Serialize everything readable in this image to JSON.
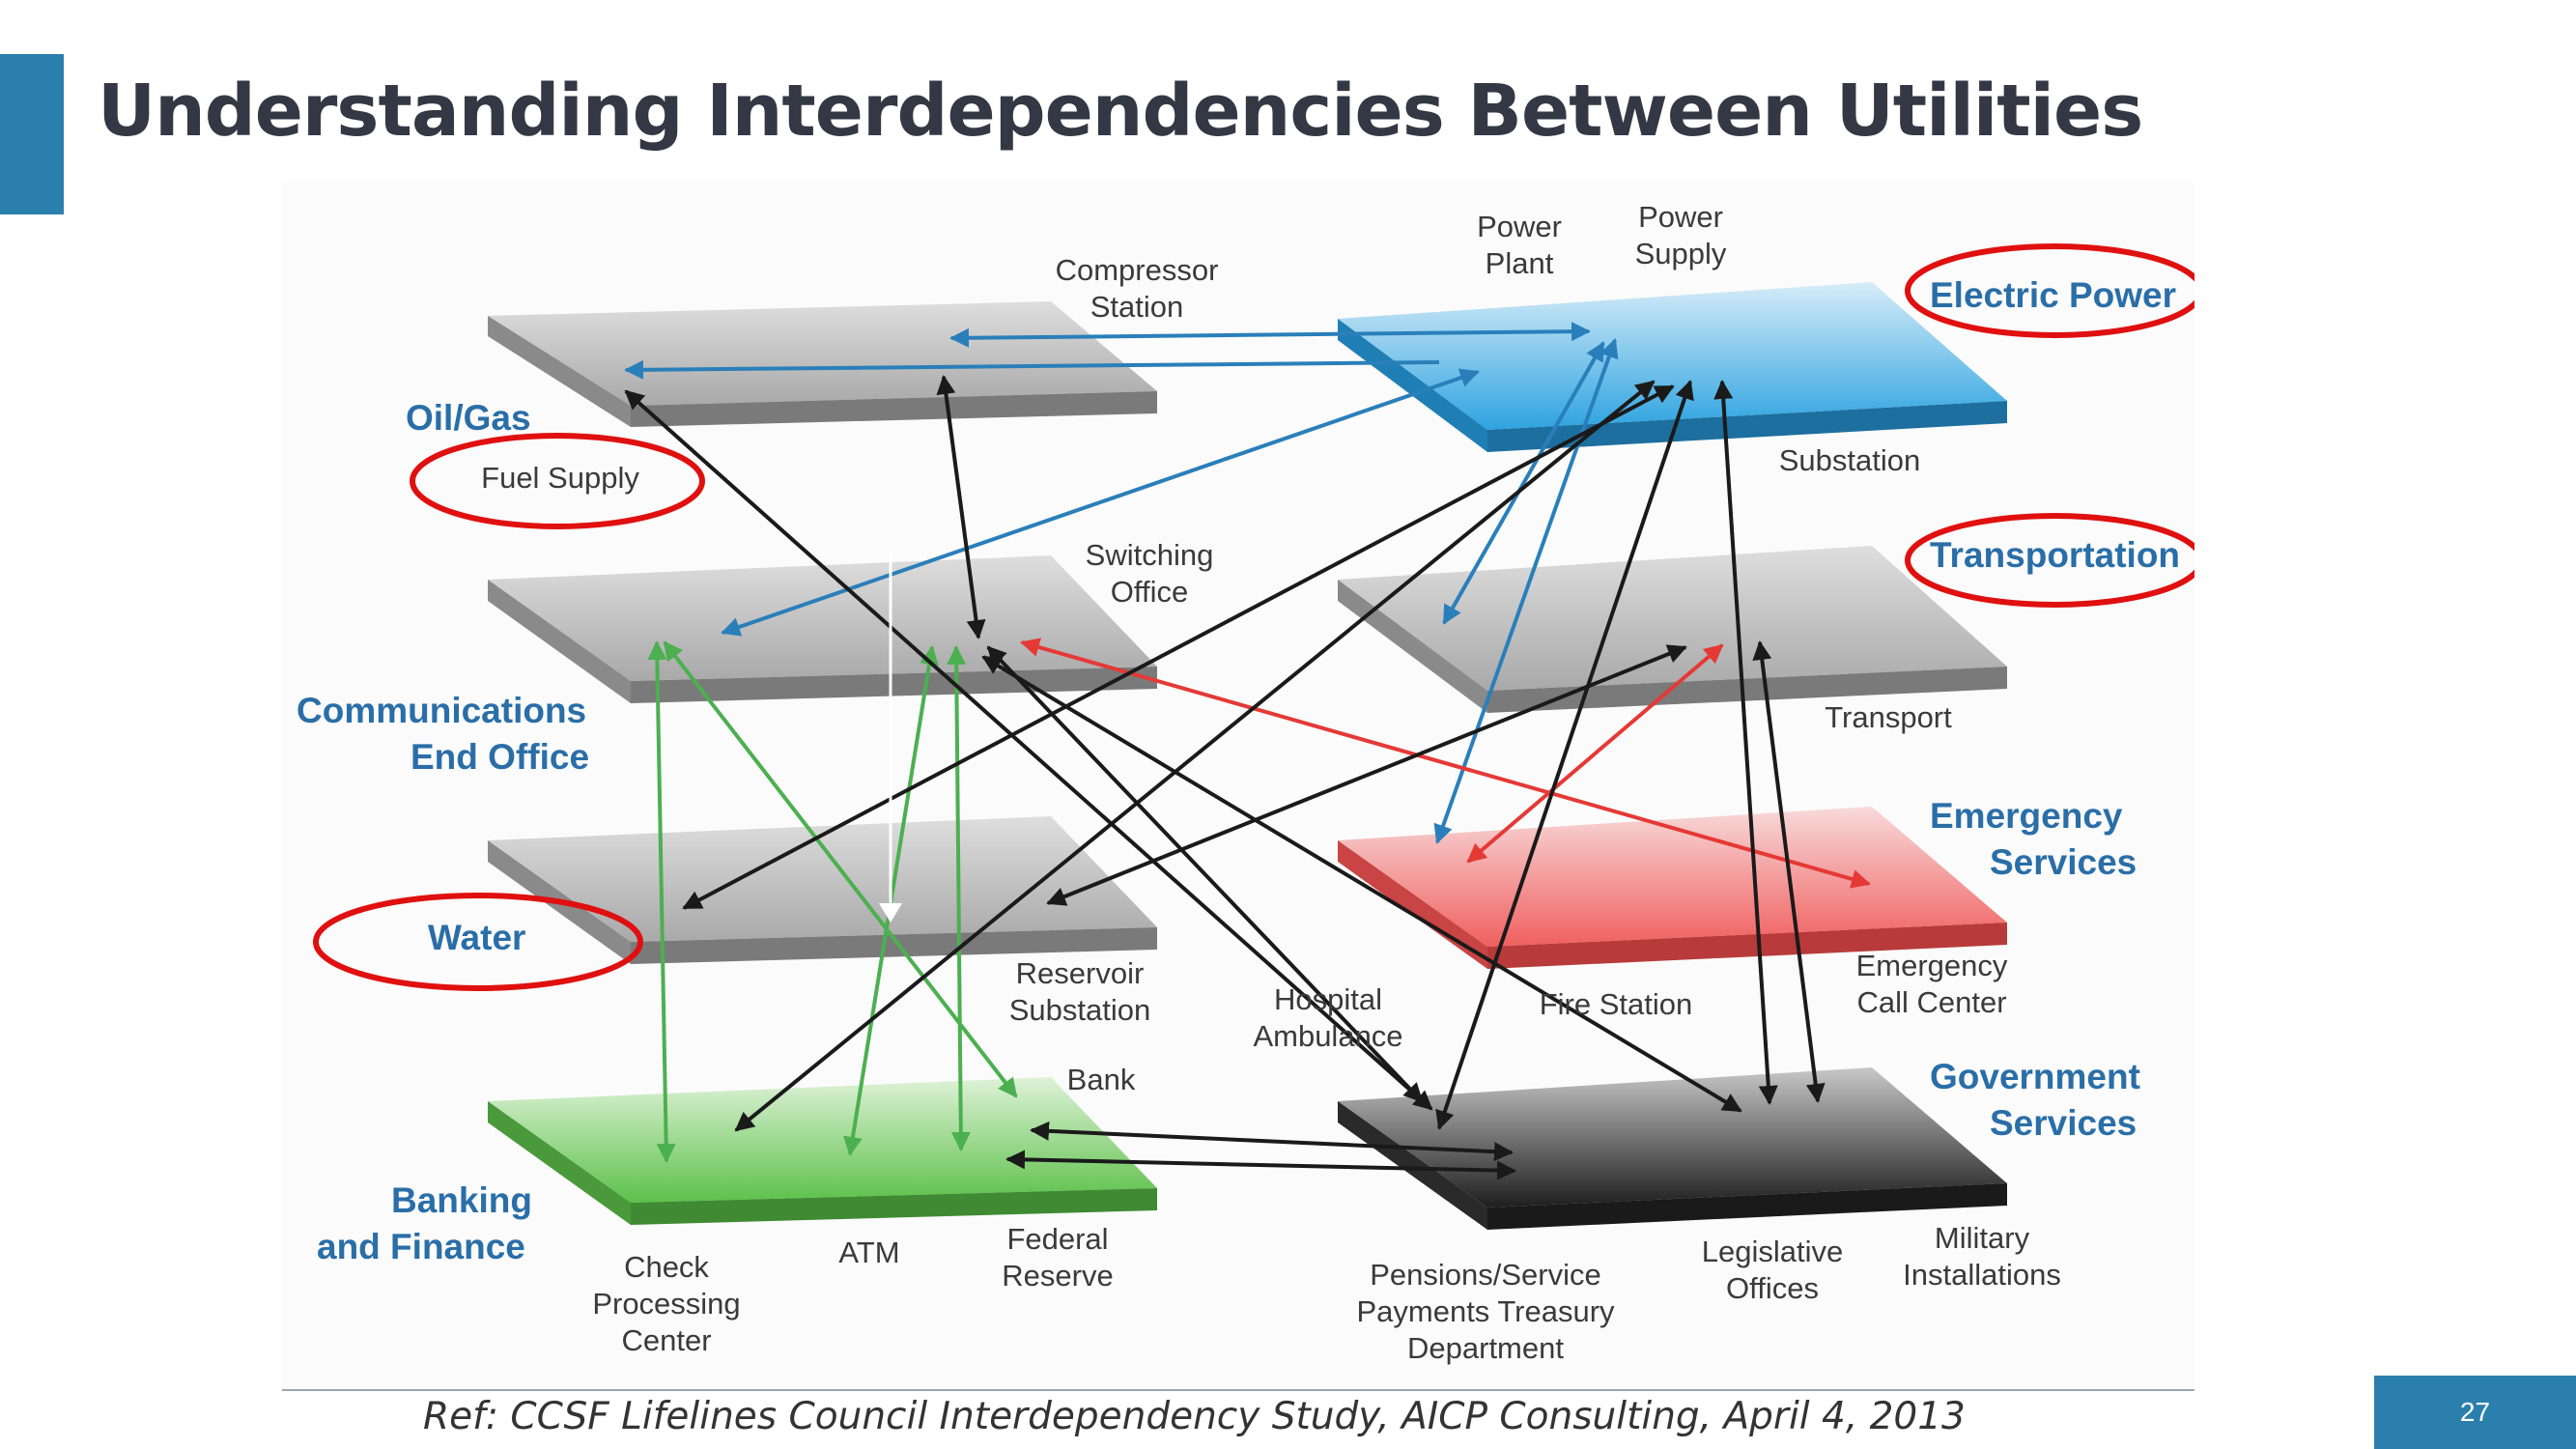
{
  "slide": {
    "title": "Understanding Interdependencies Between Utilities",
    "reference": "Ref: CCSF Lifelines Council Interdependency Study, AICP Consulting, April 4, 2013",
    "page_number": "27"
  },
  "diagram": {
    "categories": {
      "oil_gas": "Oil/Gas",
      "communications": [
        "Communications",
        "End Office"
      ],
      "water": "Water",
      "banking": [
        "Banking",
        "and Finance"
      ],
      "electric": "Electric Power",
      "transportation": "Transportation",
      "emergency": [
        "Emergency",
        "Services"
      ],
      "government": [
        "Government",
        "Services"
      ]
    },
    "labels": {
      "compressor_station": [
        "Compressor",
        "Station"
      ],
      "fuel_supply": "Fuel Supply",
      "power_plant": [
        "Power",
        "Plant"
      ],
      "power_supply": [
        "Power",
        "Supply"
      ],
      "substation": "Substation",
      "switching_office": [
        "Switching",
        "Office"
      ],
      "transport": "Transport",
      "reservoir_substation": [
        "Reservoir",
        "Substation"
      ],
      "hospital_ambulance": [
        "Hospital",
        "Ambulance"
      ],
      "fire_station": "Fire Station",
      "emergency_call_center": [
        "Emergency",
        "Call Center"
      ],
      "bank": "Bank",
      "check_processing_center": [
        "Check",
        "Processing",
        "Center"
      ],
      "atm": "ATM",
      "federal_reserve": [
        "Federal",
        "Reserve"
      ],
      "pensions": [
        "Pensions/Service",
        "Payments Treasury",
        "Department"
      ],
      "legislative_offices": [
        "Legislative",
        "Offices"
      ],
      "military_installations": [
        "Military",
        "Installations"
      ]
    },
    "colors": {
      "blue_arrow": "#2a7fba",
      "green_arrow": "#4caf50",
      "red_arrow": "#e53935",
      "black_arrow": "#1a1a1a",
      "highlight_ellipse": "#e01010",
      "category_text": "#2a6ea8"
    }
  }
}
